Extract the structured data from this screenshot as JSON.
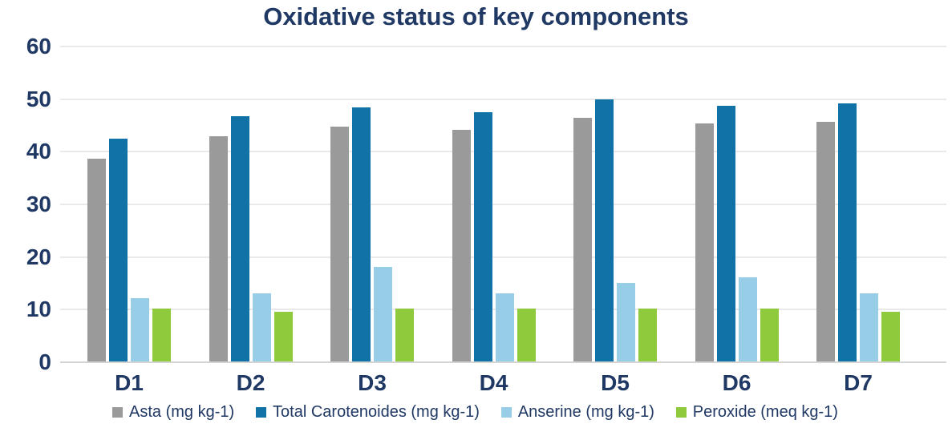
{
  "chart_data": {
    "type": "bar",
    "title": "Oxidative status of key components",
    "categories": [
      "D1",
      "D2",
      "D3",
      "D4",
      "D5",
      "D6",
      "D7"
    ],
    "series": [
      {
        "name": "Asta (mg kg-1)",
        "color": "#9a9a9a",
        "values": [
          38.5,
          42.8,
          44.6,
          44.0,
          46.3,
          45.2,
          45.6
        ]
      },
      {
        "name": "Total Carotenoides (mg kg-1)",
        "color": "#1172a8",
        "values": [
          42.4,
          46.6,
          48.3,
          47.4,
          49.8,
          48.6,
          49.0
        ]
      },
      {
        "name": "Anserine (mg kg-1)",
        "color": "#97cde6",
        "values": [
          12.0,
          13.0,
          18.0,
          13.0,
          15.0,
          16.0,
          13.0
        ]
      },
      {
        "name": "Peroxide (meq kg-1)",
        "color": "#8fc93c",
        "values": [
          10.0,
          9.5,
          10.0,
          10.0,
          10.0,
          10.0,
          9.5
        ]
      }
    ],
    "xlabel": "",
    "ylabel": "",
    "ylim": [
      0,
      60
    ],
    "yticks": [
      0,
      10,
      20,
      30,
      40,
      50,
      60
    ],
    "grid": "horizontal",
    "legend_position": "bottom",
    "title_color": "#1f3864",
    "axis_text_color": "#1f3864",
    "gridline_color": "#e9e9e9",
    "background_color": "#ffffff"
  }
}
